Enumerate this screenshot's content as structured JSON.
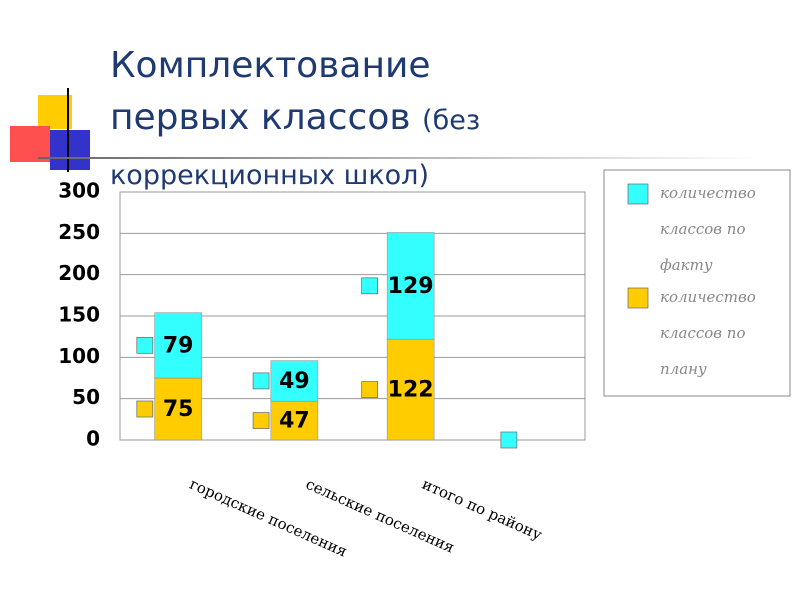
{
  "chart_data": {
    "type": "bar",
    "stacked": true,
    "title": "Комплектование первых классов",
    "subtitle": "(без коррекционных школ)",
    "categories": [
      "городские поселения",
      "сельские поселения",
      "итого по району",
      null
    ],
    "series": [
      {
        "name": "количество классов по плану",
        "color": "#ffcc00",
        "values": [
          75,
          47,
          122,
          null
        ]
      },
      {
        "name": "количество классов по факту",
        "color": "#33ffff",
        "values": [
          79,
          49,
          129,
          0
        ]
      }
    ],
    "ylim": [
      0,
      300
    ],
    "yticks": [
      0,
      50,
      100,
      150,
      200,
      250,
      300
    ],
    "grid": true,
    "legend": "right"
  }
}
